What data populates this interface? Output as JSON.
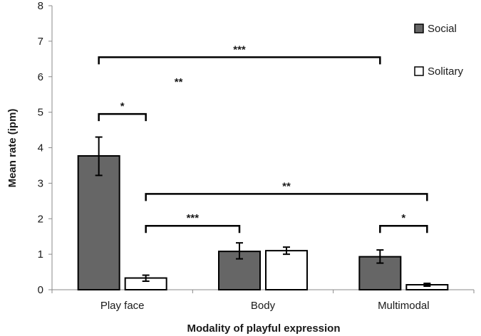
{
  "chart_data": {
    "type": "bar",
    "xlabel": "Modality of playful expression",
    "ylabel": "Mean rate (ipm)",
    "ylim": [
      0,
      8
    ],
    "yticks": [
      "0",
      "1",
      "2",
      "3",
      "4",
      "5",
      "6",
      "7",
      "8"
    ],
    "categories": [
      "Play face",
      "Body",
      "Multimodal"
    ],
    "legend_position": "top-right",
    "grid": false,
    "series": [
      {
        "name": "Social",
        "color": "#666666",
        "values": [
          3.77,
          1.08,
          0.93
        ],
        "error": [
          [
            3.22,
            4.3
          ],
          [
            0.87,
            1.32
          ],
          [
            0.75,
            1.12
          ]
        ]
      },
      {
        "name": "Solitary",
        "color": "#ffffff",
        "values": [
          0.33,
          1.1,
          0.14
        ],
        "error": [
          [
            0.24,
            0.41
          ],
          [
            1.0,
            1.2
          ],
          [
            0.1,
            0.18
          ]
        ]
      }
    ],
    "annotations": [
      {
        "label": "*",
        "from": [
          0,
          "Social"
        ],
        "to": [
          0,
          "Solitary"
        ],
        "y": 4.95
      },
      {
        "label": "***",
        "from": [
          0,
          "Social"
        ],
        "to": [
          2,
          "Social"
        ],
        "y": 6.55
      },
      {
        "label": "**",
        "free_position": {
          "category": 0.9,
          "y": 5.85
        }
      },
      {
        "label": "**",
        "from": [
          0,
          "Solitary"
        ],
        "to": [
          2,
          "Solitary"
        ],
        "y": 2.7
      },
      {
        "label": "***",
        "from": [
          0,
          "Solitary"
        ],
        "to": [
          1,
          "Social"
        ],
        "y": 1.8
      },
      {
        "label": "*",
        "from": [
          2,
          "Social"
        ],
        "to": [
          2,
          "Solitary"
        ],
        "y": 1.8
      }
    ]
  }
}
